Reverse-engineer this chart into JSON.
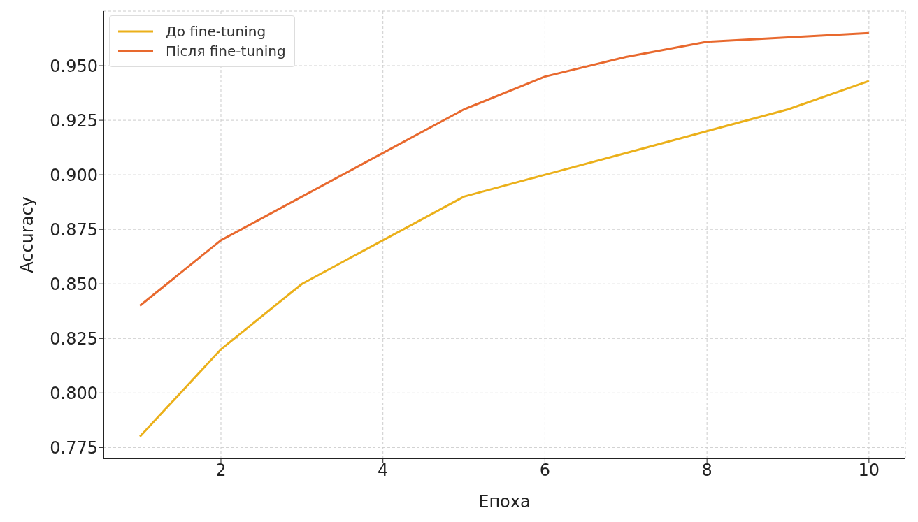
{
  "chart_data": {
    "type": "line",
    "xlabel": "Епоха",
    "ylabel": "Accuracy",
    "x": [
      1,
      2,
      3,
      4,
      5,
      6,
      7,
      8,
      9,
      10
    ],
    "series": [
      {
        "name": "До fine-tuning",
        "color": "#ebb01a",
        "values": [
          0.78,
          0.82,
          0.85,
          0.87,
          0.89,
          0.9,
          0.91,
          0.92,
          0.93,
          0.943
        ]
      },
      {
        "name": "Після fine-tuning",
        "color": "#e8692e",
        "values": [
          0.84,
          0.87,
          0.89,
          0.91,
          0.93,
          0.945,
          0.954,
          0.961,
          0.963,
          0.965
        ]
      }
    ],
    "xlim": [
      0.55,
      10.45
    ],
    "xticks": [
      2,
      4,
      6,
      8,
      10
    ],
    "ylim": [
      0.77,
      0.975
    ],
    "yticks": [
      0.775,
      {
        "value": 0.8,
        "label": "0.800"
      },
      0.825,
      {
        "value": 0.85,
        "label": "0.850"
      },
      0.875,
      {
        "value": 0.9,
        "label": "0.900"
      },
      0.925,
      {
        "value": 0.95,
        "label": "0.950"
      }
    ],
    "grid": true,
    "legend": "top left",
    "marker": "none",
    "line_style": "solid"
  }
}
